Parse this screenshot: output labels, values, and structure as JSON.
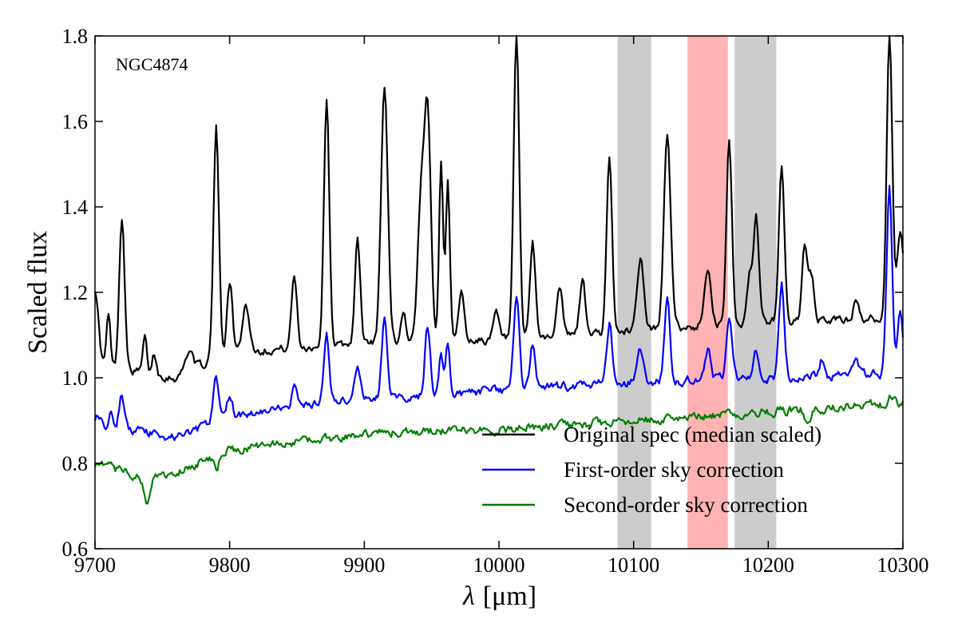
{
  "chart_data": {
    "type": "line",
    "title": "",
    "annotation": "NGC4874",
    "xlabel_symbol": "λ",
    "xlabel_unit": "[μm]",
    "ylabel": "Scaled flux",
    "xlim": [
      9700,
      10300
    ],
    "ylim": [
      0.6,
      1.8
    ],
    "xticks": [
      9700,
      9800,
      9900,
      10000,
      10100,
      10200,
      10300
    ],
    "yticks": [
      0.6,
      0.8,
      1.0,
      1.2,
      1.4,
      1.6,
      1.8
    ],
    "ytick_labels": [
      "0.6",
      "0.8",
      "1.0",
      "1.2",
      "1.4",
      "1.6",
      "1.8"
    ],
    "legend_position": "lower-right",
    "shaded_regions": [
      {
        "x0": 10088,
        "x1": 10113,
        "color": "#cccccc"
      },
      {
        "x0": 10140,
        "x1": 10170,
        "color": "#ffb3b3"
      },
      {
        "x0": 10175,
        "x1": 10206,
        "color": "#cccccc"
      }
    ],
    "series": [
      {
        "name": "Original spec (median scaled)",
        "color": "#000000",
        "baseline": [
          [
            9700,
            1.03
          ],
          [
            9760,
            1.0
          ],
          [
            9800,
            1.06
          ],
          [
            9900,
            1.08
          ],
          [
            10000,
            1.09
          ],
          [
            10100,
            1.11
          ],
          [
            10200,
            1.13
          ],
          [
            10300,
            1.14
          ]
        ],
        "peaks": [
          [
            9700,
            0.18,
            2.5
          ],
          [
            9710,
            0.12,
            1.5
          ],
          [
            9720,
            0.36,
            2
          ],
          [
            9737,
            0.08,
            1.5
          ],
          [
            9744,
            0.05,
            1.5
          ],
          [
            9770,
            0.05,
            3
          ],
          [
            9790,
            0.54,
            2
          ],
          [
            9800,
            0.17,
            2
          ],
          [
            9812,
            0.11,
            2.5
          ],
          [
            9848,
            0.17,
            2
          ],
          [
            9872,
            0.58,
            2
          ],
          [
            9895,
            0.24,
            2
          ],
          [
            9915,
            0.6,
            2.5
          ],
          [
            9929,
            0.07,
            2
          ],
          [
            9942,
            0.3,
            2.5
          ],
          [
            9947,
            0.52,
            2.5
          ],
          [
            9957,
            0.42,
            1.5
          ],
          [
            9962,
            0.38,
            1.5
          ],
          [
            9972,
            0.12,
            2
          ],
          [
            9998,
            0.06,
            2
          ],
          [
            10013,
            0.71,
            2
          ],
          [
            10025,
            0.22,
            2
          ],
          [
            10045,
            0.12,
            2
          ],
          [
            10062,
            0.13,
            2
          ],
          [
            10082,
            0.4,
            2
          ],
          [
            10105,
            0.17,
            2.5
          ],
          [
            10125,
            0.45,
            2.5
          ],
          [
            10155,
            0.14,
            2.5
          ],
          [
            10171,
            0.43,
            2
          ],
          [
            10186,
            0.11,
            2
          ],
          [
            10191,
            0.25,
            2
          ],
          [
            10210,
            0.37,
            2
          ],
          [
            10227,
            0.17,
            2
          ],
          [
            10232,
            0.1,
            2
          ],
          [
            10265,
            0.04,
            2
          ],
          [
            10290,
            0.67,
            2
          ],
          [
            10298,
            0.2,
            2.5
          ]
        ],
        "noise": 0.011
      },
      {
        "name": "First-order sky correction",
        "color": "#0000ff",
        "baseline": [
          [
            9700,
            0.89
          ],
          [
            9760,
            0.86
          ],
          [
            9800,
            0.91
          ],
          [
            9900,
            0.95
          ],
          [
            10000,
            0.97
          ],
          [
            10100,
            0.99
          ],
          [
            10200,
            1.0
          ],
          [
            10300,
            1.01
          ]
        ],
        "peaks": [
          [
            9702,
            0.03,
            2
          ],
          [
            9712,
            0.05,
            1.5
          ],
          [
            9720,
            0.08,
            2
          ],
          [
            9790,
            0.1,
            2
          ],
          [
            9800,
            0.05,
            2
          ],
          [
            9848,
            0.05,
            2
          ],
          [
            9872,
            0.16,
            2
          ],
          [
            9895,
            0.08,
            2
          ],
          [
            9915,
            0.19,
            2
          ],
          [
            9947,
            0.16,
            2
          ],
          [
            9957,
            0.1,
            1.5
          ],
          [
            9962,
            0.12,
            1.5
          ],
          [
            10013,
            0.22,
            2
          ],
          [
            10025,
            0.1,
            2
          ],
          [
            10082,
            0.14,
            2
          ],
          [
            10105,
            0.08,
            2
          ],
          [
            10125,
            0.19,
            2
          ],
          [
            10155,
            0.07,
            2
          ],
          [
            10171,
            0.14,
            2
          ],
          [
            10191,
            0.06,
            2
          ],
          [
            10210,
            0.22,
            2
          ],
          [
            10240,
            0.04,
            2
          ],
          [
            10265,
            0.04,
            2
          ],
          [
            10290,
            0.44,
            2
          ],
          [
            10298,
            0.14,
            2
          ]
        ],
        "noise": 0.012
      },
      {
        "name": "Second-order sky correction",
        "color": "#007f00",
        "baseline": [
          [
            9700,
            0.8
          ],
          [
            9740,
            0.76
          ],
          [
            9760,
            0.78
          ],
          [
            9800,
            0.83
          ],
          [
            9900,
            0.87
          ],
          [
            10000,
            0.88
          ],
          [
            10100,
            0.9
          ],
          [
            10200,
            0.92
          ],
          [
            10300,
            0.94
          ]
        ],
        "peaks": [
          [
            9738,
            -0.05,
            2
          ],
          [
            9790,
            -0.03,
            2
          ],
          [
            10230,
            -0.04,
            2
          ],
          [
            10292,
            0.02,
            2
          ]
        ],
        "noise": 0.012
      }
    ]
  }
}
